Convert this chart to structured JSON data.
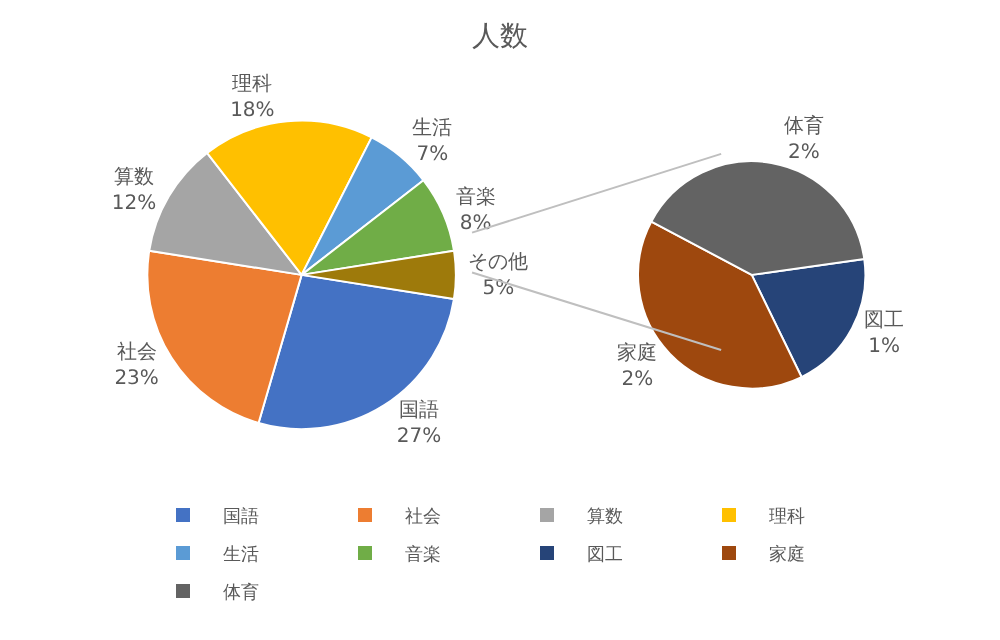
{
  "chart_data": [
    {
      "type": "pie",
      "title": "人数",
      "legend": "bottom",
      "categories": [
        "国語",
        "社会",
        "算数",
        "理科",
        "生活",
        "音楽",
        "その他"
      ],
      "values": [
        27,
        23,
        12,
        18,
        7,
        8,
        5
      ],
      "value_labels": [
        "27%",
        "23%",
        "12%",
        "18%",
        "7%",
        "8%",
        "5%"
      ],
      "colors": [
        "#4472c4",
        "#ed7d31",
        "#a5a5a5",
        "#ffc000",
        "#5b9bd5",
        "#70ad47",
        "#9e7a0b"
      ]
    },
    {
      "type": "pie",
      "legend": "bottom",
      "categories": [
        "図工",
        "家庭",
        "体育"
      ],
      "values": [
        1,
        2,
        2
      ],
      "value_labels": [
        "1%",
        "2%",
        "2%"
      ],
      "colors": [
        "#264478",
        "#9e480e",
        "#636363"
      ]
    }
  ]
}
